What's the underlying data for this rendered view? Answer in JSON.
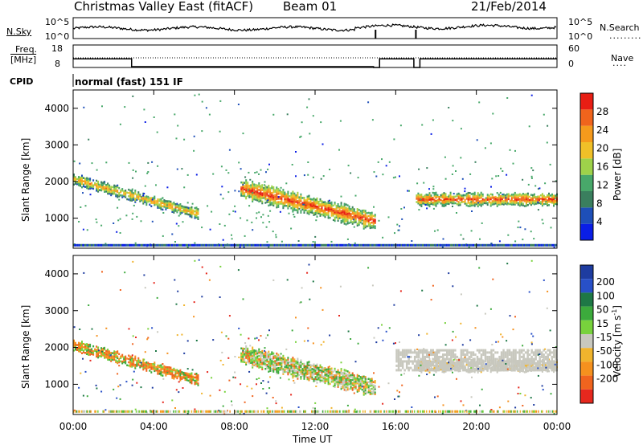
{
  "header": {
    "title": "Christmas Valley East (fitACF)",
    "beam": "Beam 01",
    "date": "21/Feb/2014"
  },
  "panels": {
    "nsky_label": "N.Sky",
    "nsearch_label": "N.Search",
    "noise_ticks": [
      "10^5",
      "10^0"
    ],
    "freq_label_1": "Freq.",
    "freq_label_2": "[MHz]",
    "freq_ticks": [
      "18",
      "8"
    ],
    "nave_label": "Nave",
    "nave_ticks": [
      "60",
      "0"
    ],
    "cpid_label": "CPID",
    "mode_text": "normal (fast) 151 IF"
  },
  "colors": {
    "power_scale": [
      "#0a1ee6",
      "#1e4fb8",
      "#3a7f5e",
      "#48a86a",
      "#9ed24a",
      "#f0c028",
      "#f59a1c",
      "#f0641c",
      "#e81e14"
    ],
    "velocity_scale": [
      "#1e3ca0",
      "#2850c8",
      "#1e7846",
      "#3caa3c",
      "#78d23c",
      "#c8c8be",
      "#f0b42d",
      "#f5911e",
      "#f0641e",
      "#e6281e"
    ],
    "ground_scatter": "#c8c8be"
  },
  "chart_data": [
    {
      "type": "heatmap",
      "title": "Power",
      "xlabel": "Time UT",
      "ylabel": "Slant Range [km]",
      "xticks": [
        "00:00",
        "04:00",
        "08:00",
        "12:00",
        "16:00",
        "20:00",
        "00:00"
      ],
      "yticks": [
        "1000",
        "2000",
        "3000",
        "4000"
      ],
      "xlim": [
        0,
        24
      ],
      "ylim": [
        180,
        4500
      ],
      "colorbar": {
        "label": "Power [dB]",
        "ticks": [
          "4",
          "8",
          "12",
          "16",
          "20",
          "24",
          "28"
        ],
        "range": [
          0,
          30
        ]
      },
      "features": [
        {
          "t_start": 0.0,
          "t_end": 6.2,
          "r_start": 2050,
          "r_end": 1100,
          "width": 250,
          "peak_db": 22
        },
        {
          "t_start": 8.3,
          "t_end": 15.0,
          "r_start": 1800,
          "r_end": 900,
          "width": 450,
          "peak_db": 28
        },
        {
          "t_start": 17.0,
          "t_end": 24.0,
          "r_start": 1500,
          "r_end": 1500,
          "width": 300,
          "peak_db": 28
        }
      ]
    },
    {
      "type": "heatmap",
      "title": "Velocity",
      "xlabel": "Time UT",
      "ylabel": "Slant Range [km]",
      "xticks": [
        "00:00",
        "04:00",
        "08:00",
        "12:00",
        "16:00",
        "20:00",
        "00:00"
      ],
      "yticks": [
        "1000",
        "2000",
        "3000",
        "4000"
      ],
      "xlim": [
        0,
        24
      ],
      "ylim": [
        180,
        4500
      ],
      "colorbar": {
        "label": "Velocity [m s^-1]",
        "ticks": [
          "200",
          "100",
          "50",
          "15",
          "-15",
          "-50",
          "-100",
          "-200"
        ],
        "range": [
          -250,
          250
        ]
      },
      "features": [
        {
          "t_start": 0.0,
          "t_end": 6.2,
          "r_start": 2050,
          "r_end": 1100,
          "dominant": "negative"
        },
        {
          "t_start": 8.3,
          "t_end": 15.0,
          "r_start": 1800,
          "r_end": 900,
          "dominant": "mixed"
        },
        {
          "t_start": 16.0,
          "t_end": 24.0,
          "r_start": 1500,
          "r_end": 1500,
          "dominant": "ground_scatter"
        }
      ]
    }
  ]
}
